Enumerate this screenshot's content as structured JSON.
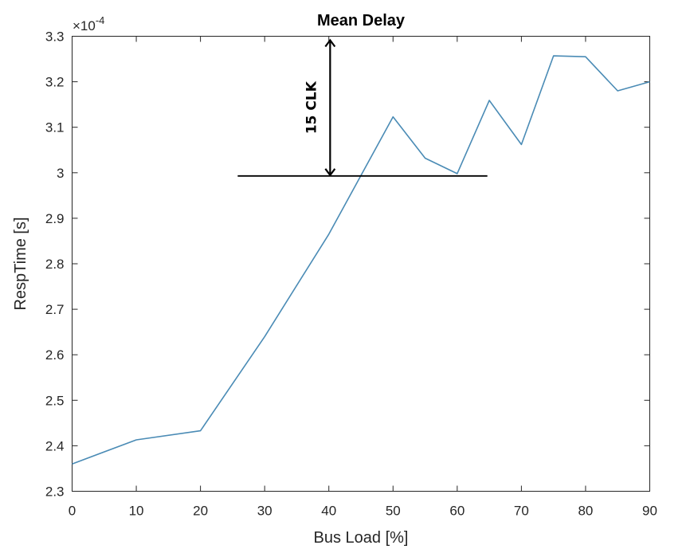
{
  "chart_data": {
    "type": "line",
    "title": "Mean Delay",
    "xlabel": "Bus Load [%]",
    "ylabel": "RespTime [s]",
    "y_exponent_base": "×10",
    "y_exponent_power": "-4",
    "xlim": [
      0,
      90
    ],
    "ylim": [
      2.3,
      3.3
    ],
    "x_ticks": [
      0,
      10,
      20,
      30,
      40,
      50,
      60,
      70,
      80,
      90
    ],
    "x_tick_labels": [
      "0",
      "10",
      "20",
      "30",
      "40",
      "50",
      "60",
      "70",
      "80",
      "90"
    ],
    "y_ticks": [
      2.3,
      2.4,
      2.5,
      2.6,
      2.7,
      2.8,
      2.9,
      3.0,
      3.1,
      3.2,
      3.3
    ],
    "y_tick_labels": [
      "2.3",
      "2.4",
      "2.5",
      "2.6",
      "2.7",
      "2.8",
      "2.9",
      "3",
      "3.1",
      "3.2",
      "3.3"
    ],
    "grid": false,
    "series": [
      {
        "color": "#4a8bb5",
        "x": [
          0,
          10,
          20,
          30,
          40,
          50,
          55,
          60,
          65,
          70,
          75,
          80,
          85,
          90
        ],
        "y": [
          2.36,
          2.413,
          2.433,
          2.64,
          2.865,
          3.123,
          3.032,
          2.998,
          3.159,
          3.062,
          3.257,
          3.255,
          3.18,
          3.2
        ]
      }
    ],
    "annotations": {
      "label": "15 CLK",
      "hline": {
        "x_from": 25.8,
        "x_to": 64.7,
        "y": 2.993
      },
      "arrow": {
        "x": 40.2,
        "y_from": 2.993,
        "y_to": 3.293
      }
    }
  }
}
